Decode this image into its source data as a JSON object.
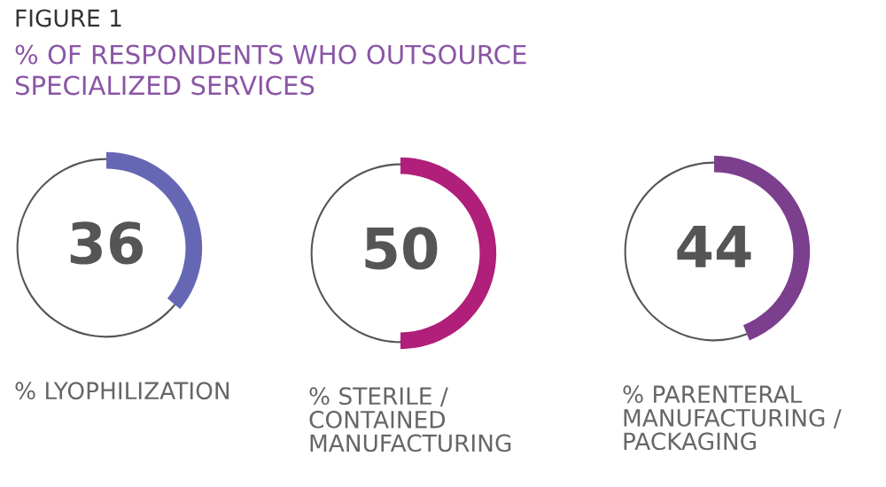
{
  "chart_data": [
    {
      "type": "donut",
      "title": "FIGURE 1",
      "subtitle": "% OF RESPONDENTS WHO OUTSOURCE\nSPECIALIZED SERVICES",
      "categories": [
        null,
        null
      ],
      "values": [
        36,
        64
      ],
      "colors": [
        "#6667b4",
        "#555555"
      ],
      "value_labels": [
        "36",
        null
      ],
      "xlabel": "% LYOPHILIZATION"
    },
    {
      "type": "donut",
      "categories": [
        null,
        null
      ],
      "values": [
        50,
        50
      ],
      "colors": [
        "#b01f79",
        "#555555"
      ],
      "value_labels": [
        "50",
        null
      ],
      "xlabel": "% STERILE /\nCONTAINED\nMANUFACTURING"
    },
    {
      "type": "donut",
      "categories": [
        null,
        null
      ],
      "values": [
        44,
        56
      ],
      "colors": [
        "#7c3f8e",
        "#555555"
      ],
      "value_labels": [
        "44",
        null
      ],
      "xlabel": "% PARENTERAL\nMANUFACTURING /\nPACKAGING"
    }
  ]
}
